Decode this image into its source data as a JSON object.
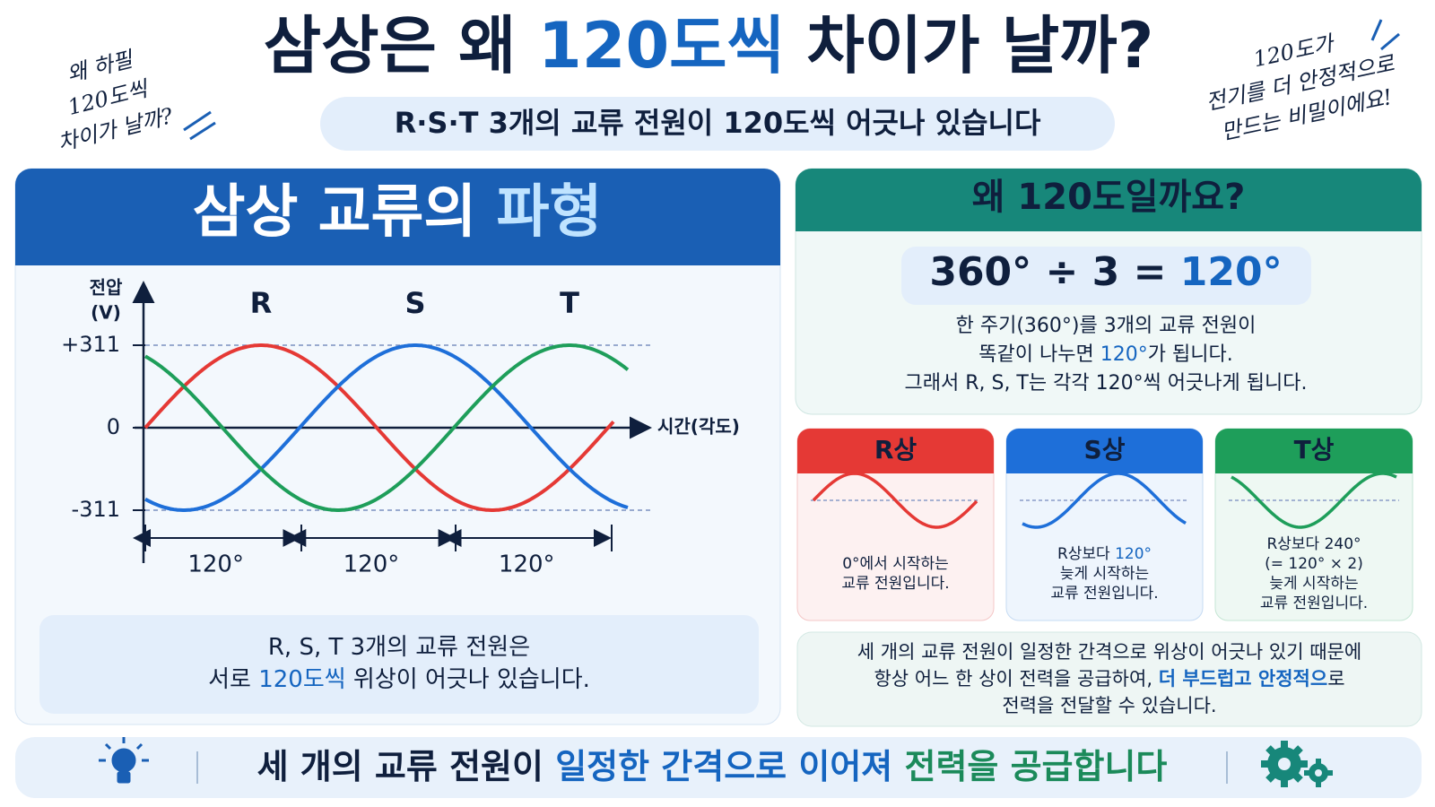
{
  "header": {
    "title": [
      "삼상은 왜 ",
      "120도씩",
      " 차이가 날까?"
    ],
    "subtitle": "R·S·T 3개의 교류 전원이 120도씩 어긋나 있습니다"
  },
  "notes": {
    "left": [
      "왜 하필",
      "120도씩",
      "차이가 날까?"
    ],
    "right": [
      "120도가",
      "전기를 더 안정적으로",
      "만드는 비밀이에요!"
    ]
  },
  "waveform": {
    "title": [
      "삼상 교류의 ",
      "파형"
    ],
    "y_label": [
      "전압",
      "(V)"
    ],
    "x_label": "시간(각도)",
    "yticks": [
      {
        "value": 311,
        "label": "+311"
      },
      0,
      {
        "value": -311,
        "label": "-311"
      }
    ],
    "phases": [
      {
        "name": "R",
        "color": "#e53935"
      },
      {
        "name": "S",
        "color": "#1e6fd9"
      },
      {
        "name": "T",
        "color": "#1e9e5a"
      }
    ],
    "spacing_labels": [
      "120°",
      "120°",
      "120°"
    ],
    "caption": [
      [
        "R, S, T 3개의 교류 전원은"
      ],
      [
        "서로 ",
        "120도씩",
        " 위상이 어긋나 있습니다."
      ]
    ]
  },
  "why": {
    "title": "왜 120도일까요?",
    "formula": [
      "360° ÷ 3 = ",
      "120°"
    ],
    "lines": [
      [
        "한 주기(360°)를 3개의 교류 전원이"
      ],
      [
        "똑같이 나누면 ",
        "120°",
        "가 됩니다."
      ],
      [
        "그래서 R, S, T는 각각 120°씩 어긋나게 됩니다."
      ]
    ]
  },
  "phase_cards": [
    {
      "title": "R상",
      "lines": [
        [
          "0°에서 시작하는"
        ],
        [
          "교류 전원입니다."
        ]
      ]
    },
    {
      "title": "S상",
      "lines": [
        [
          "R상보다 ",
          "120°"
        ],
        [
          "늦게 시작하는"
        ],
        [
          "교류 전원입니다."
        ]
      ]
    },
    {
      "title": "T상",
      "lines": [
        [
          "R상보다 240°"
        ],
        [
          "(= 120° × 2)"
        ],
        [
          "늦게 시작하는"
        ],
        [
          "교류 전원입니다."
        ]
      ]
    }
  ],
  "summary": [
    [
      "세 개의 교류 전원이 일정한 간격으로 위상이 어긋나 있기 때문에"
    ],
    [
      "항상 어느 한 상이 전력을 공급하여, ",
      "더 부드럽고 안정적으",
      "로"
    ],
    [
      "전력을 전달할 수 있습니다."
    ]
  ],
  "footer": [
    "세 개의 교류 전원이 ",
    "일정한 간격으로 이어져 ",
    "전력을 공급합니다"
  ]
}
